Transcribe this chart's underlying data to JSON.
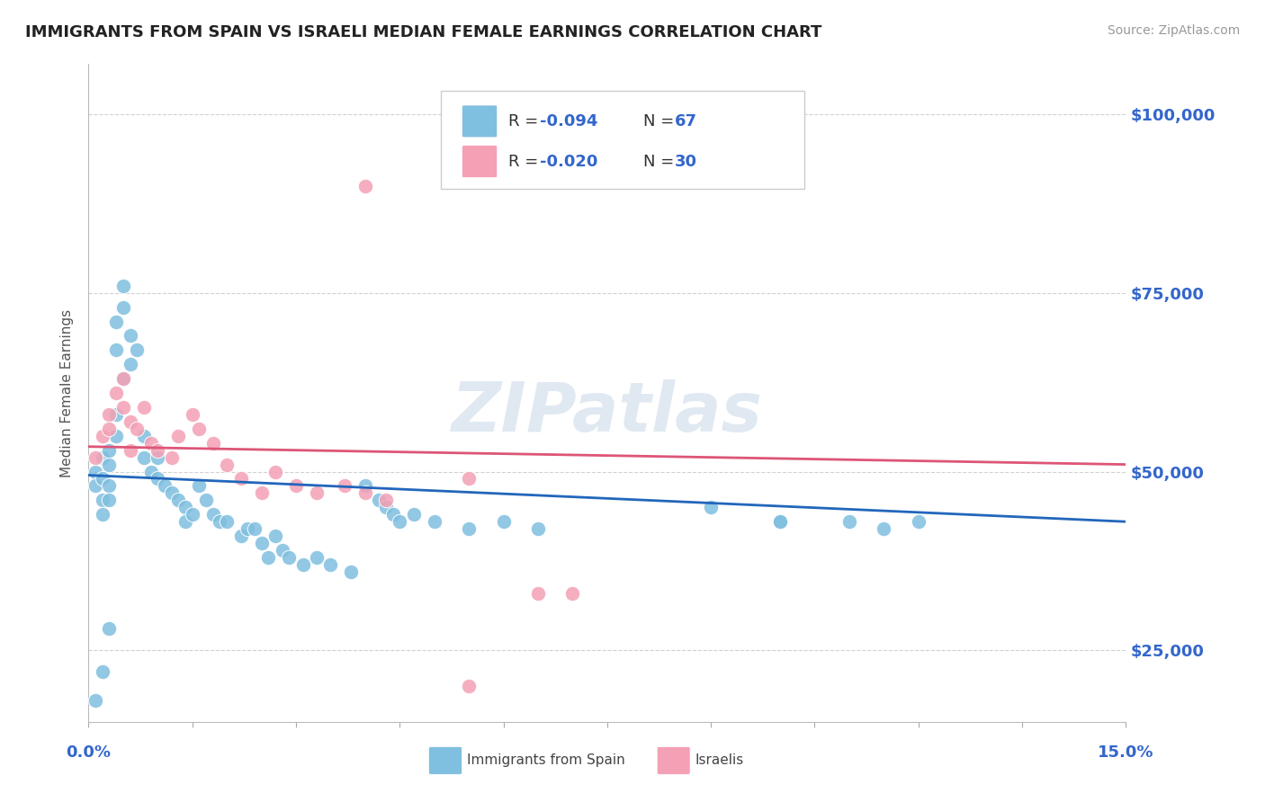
{
  "title": "IMMIGRANTS FROM SPAIN VS ISRAELI MEDIAN FEMALE EARNINGS CORRELATION CHART",
  "source": "Source: ZipAtlas.com",
  "ylabel": "Median Female Earnings",
  "xlim": [
    0.0,
    0.15
  ],
  "ylim": [
    15000,
    107000
  ],
  "yticks": [
    25000,
    50000,
    75000,
    100000
  ],
  "ytick_labels": [
    "$25,000",
    "$50,000",
    "$75,000",
    "$100,000"
  ],
  "blue_color": "#7fbfdf",
  "pink_color": "#f4a0b5",
  "blue_line_color": "#2266bb",
  "pink_line_color": "#dd5577",
  "label_color": "#3366cc",
  "watermark": "ZIPatlas",
  "blue_points": [
    [
      0.001,
      50000
    ],
    [
      0.001,
      48000
    ],
    [
      0.002,
      52000
    ],
    [
      0.002,
      49000
    ],
    [
      0.002,
      46000
    ],
    [
      0.002,
      44000
    ],
    [
      0.003,
      51000
    ],
    [
      0.003,
      48000
    ],
    [
      0.003,
      46000
    ],
    [
      0.003,
      53000
    ],
    [
      0.004,
      55000
    ],
    [
      0.004,
      58000
    ],
    [
      0.004,
      67000
    ],
    [
      0.004,
      71000
    ],
    [
      0.005,
      73000
    ],
    [
      0.005,
      76000
    ],
    [
      0.005,
      63000
    ],
    [
      0.006,
      69000
    ],
    [
      0.006,
      65000
    ],
    [
      0.007,
      67000
    ],
    [
      0.008,
      55000
    ],
    [
      0.008,
      52000
    ],
    [
      0.009,
      50000
    ],
    [
      0.01,
      52000
    ],
    [
      0.01,
      49000
    ],
    [
      0.011,
      48000
    ],
    [
      0.012,
      47000
    ],
    [
      0.013,
      46000
    ],
    [
      0.014,
      45000
    ],
    [
      0.014,
      43000
    ],
    [
      0.015,
      44000
    ],
    [
      0.016,
      48000
    ],
    [
      0.017,
      46000
    ],
    [
      0.018,
      44000
    ],
    [
      0.019,
      43000
    ],
    [
      0.02,
      43000
    ],
    [
      0.022,
      41000
    ],
    [
      0.023,
      42000
    ],
    [
      0.024,
      42000
    ],
    [
      0.025,
      40000
    ],
    [
      0.026,
      38000
    ],
    [
      0.027,
      41000
    ],
    [
      0.028,
      39000
    ],
    [
      0.029,
      38000
    ],
    [
      0.031,
      37000
    ],
    [
      0.033,
      38000
    ],
    [
      0.035,
      37000
    ],
    [
      0.038,
      36000
    ],
    [
      0.04,
      48000
    ],
    [
      0.042,
      46000
    ],
    [
      0.043,
      45000
    ],
    [
      0.044,
      44000
    ],
    [
      0.045,
      43000
    ],
    [
      0.047,
      44000
    ],
    [
      0.05,
      43000
    ],
    [
      0.055,
      42000
    ],
    [
      0.06,
      43000
    ],
    [
      0.065,
      42000
    ],
    [
      0.09,
      45000
    ],
    [
      0.1,
      43000
    ],
    [
      0.1,
      43000
    ],
    [
      0.11,
      43000
    ],
    [
      0.115,
      42000
    ],
    [
      0.12,
      43000
    ],
    [
      0.001,
      18000
    ],
    [
      0.002,
      22000
    ],
    [
      0.003,
      28000
    ]
  ],
  "pink_points": [
    [
      0.001,
      52000
    ],
    [
      0.002,
      55000
    ],
    [
      0.003,
      58000
    ],
    [
      0.003,
      56000
    ],
    [
      0.004,
      61000
    ],
    [
      0.005,
      59000
    ],
    [
      0.005,
      63000
    ],
    [
      0.006,
      57000
    ],
    [
      0.006,
      53000
    ],
    [
      0.007,
      56000
    ],
    [
      0.008,
      59000
    ],
    [
      0.009,
      54000
    ],
    [
      0.01,
      53000
    ],
    [
      0.012,
      52000
    ],
    [
      0.013,
      55000
    ],
    [
      0.015,
      58000
    ],
    [
      0.016,
      56000
    ],
    [
      0.018,
      54000
    ],
    [
      0.02,
      51000
    ],
    [
      0.022,
      49000
    ],
    [
      0.025,
      47000
    ],
    [
      0.027,
      50000
    ],
    [
      0.03,
      48000
    ],
    [
      0.033,
      47000
    ],
    [
      0.037,
      48000
    ],
    [
      0.04,
      47000
    ],
    [
      0.043,
      46000
    ],
    [
      0.055,
      49000
    ],
    [
      0.065,
      33000
    ],
    [
      0.07,
      33000
    ],
    [
      0.04,
      90000
    ],
    [
      0.055,
      20000
    ]
  ]
}
